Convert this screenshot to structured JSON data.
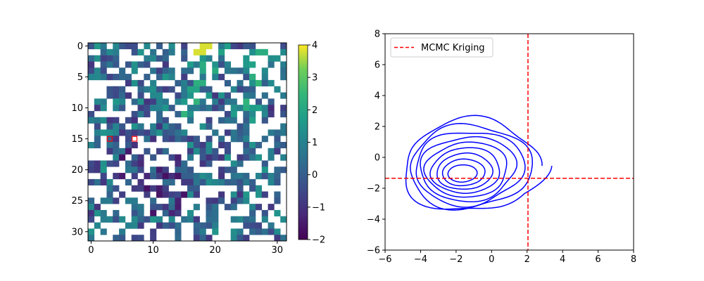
{
  "chart_data": [
    {
      "type": "heatmap",
      "title": "",
      "xlabel": "",
      "ylabel": "",
      "shape": [
        32,
        32
      ],
      "colormap": "viridis",
      "vmin": -2,
      "vmax": 4,
      "x_ticks": [
        "0",
        "10",
        "20",
        "30"
      ],
      "y_ticks": [
        "0",
        "5",
        "10",
        "15",
        "20",
        "25",
        "30"
      ],
      "colorbar_ticks": [
        "−2",
        "−1",
        "0",
        "1",
        "2",
        "3",
        "4"
      ],
      "missing_fraction": 0.45,
      "highlighted_cells": [
        {
          "row": 15,
          "col": 3
        },
        {
          "row": 15,
          "col": 7
        }
      ],
      "highlight_color": "#ff0000",
      "grid": false
    },
    {
      "type": "contour",
      "title": "",
      "xlabel": "",
      "ylabel": "",
      "xlim": [
        -6,
        8
      ],
      "ylim": [
        -6,
        8
      ],
      "x_ticks": [
        "−6",
        "−4",
        "−2",
        "0",
        "2",
        "4",
        "6",
        "8"
      ],
      "y_ticks": [
        "−6",
        "−4",
        "−2",
        "0",
        "2",
        "4",
        "6",
        "8"
      ],
      "contour_color": "#0000ff",
      "levels": 9,
      "density_peak": [
        -1.7,
        -1.1
      ],
      "kriging_estimate": {
        "x": 2.05,
        "y": -1.35
      },
      "kriging_color": "#ff0000",
      "legend": {
        "position": "upper-left",
        "entries": [
          "MCMC Kriging"
        ]
      },
      "grid": false
    }
  ]
}
